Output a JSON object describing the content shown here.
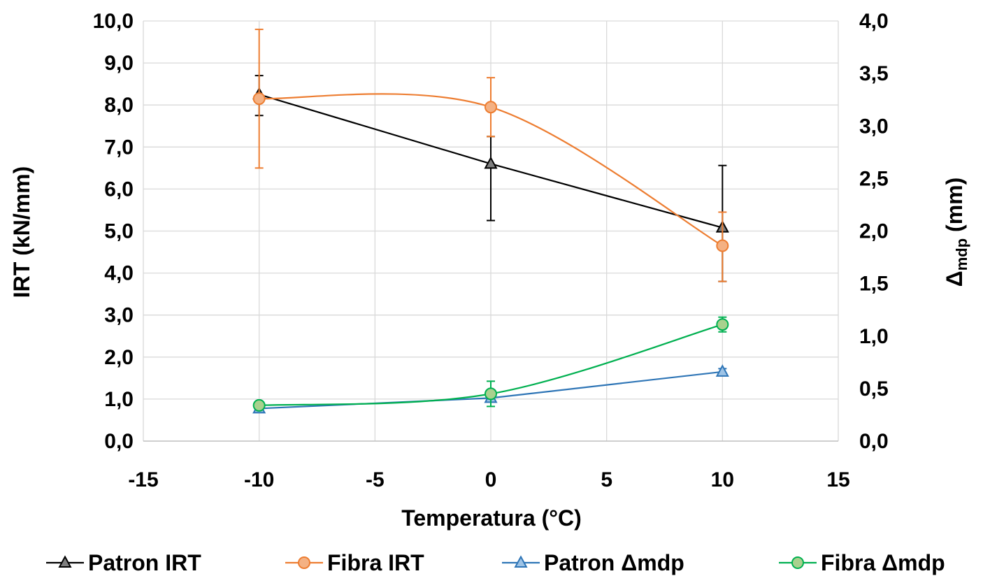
{
  "chart_data": {
    "type": "line",
    "xlabel": "Temperatura (°C)",
    "ylabel_left": "IRT (kN/mm)",
    "ylabel_right_main": "Δ",
    "ylabel_right_sub": "mdp",
    "ylabel_right_unit": " (mm)",
    "xlim": [
      -15,
      15
    ],
    "x_ticks": [
      -15,
      -10,
      -5,
      0,
      5,
      10,
      15
    ],
    "x_tick_labels": [
      "-15",
      "-10",
      "-5",
      "0",
      "5",
      "10",
      "15"
    ],
    "ylim_left": [
      0,
      10
    ],
    "y_left_tick_labels": [
      "0,0",
      "1,0",
      "2,0",
      "3,0",
      "4,0",
      "5,0",
      "6,0",
      "7,0",
      "8,0",
      "9,0",
      "10,0"
    ],
    "ylim_right": [
      0,
      4
    ],
    "y_right_tick_labels": [
      "0,0",
      "0,5",
      "1,0",
      "1,5",
      "2,0",
      "2,5",
      "3,0",
      "3,5",
      "4,0"
    ],
    "grid": true,
    "legend_position": "bottom",
    "series": [
      {
        "name": "Patron IRT",
        "axis": "left",
        "color": "#000000",
        "fill": "#7f7f7f",
        "marker": "triangle",
        "smooth": false,
        "x": [
          -10,
          0,
          10
        ],
        "y": [
          8.25,
          6.6,
          5.08
        ],
        "err_low": [
          0.5,
          1.35,
          1.28
        ],
        "err_high": [
          0.45,
          0.65,
          1.48
        ]
      },
      {
        "name": "Fibra IRT",
        "axis": "left",
        "color": "#ed7d31",
        "fill": "#f4b183",
        "marker": "circle",
        "smooth": true,
        "x": [
          -10,
          0,
          10
        ],
        "y": [
          8.15,
          7.95,
          4.65
        ],
        "err_low": [
          1.65,
          0.7,
          0.85
        ],
        "err_high": [
          1.65,
          0.7,
          0.8
        ]
      },
      {
        "name": "Patron Δmdp",
        "axis": "right",
        "color": "#2e75b6",
        "fill": "#9dc3e6",
        "marker": "triangle",
        "smooth": false,
        "x": [
          -10,
          0,
          10
        ],
        "y": [
          0.31,
          0.41,
          0.66
        ],
        "err_low": [
          0.02,
          0.03,
          0.03
        ],
        "err_high": [
          0.02,
          0.03,
          0.03
        ]
      },
      {
        "name": "Fibra Δmdp",
        "axis": "right",
        "color": "#00b050",
        "fill": "#a9d18e",
        "marker": "circle",
        "smooth": true,
        "x": [
          -10,
          0,
          10
        ],
        "y": [
          0.34,
          0.45,
          1.11
        ],
        "err_low": [
          0.02,
          0.12,
          0.07
        ],
        "err_high": [
          0.02,
          0.12,
          0.07
        ]
      }
    ]
  }
}
